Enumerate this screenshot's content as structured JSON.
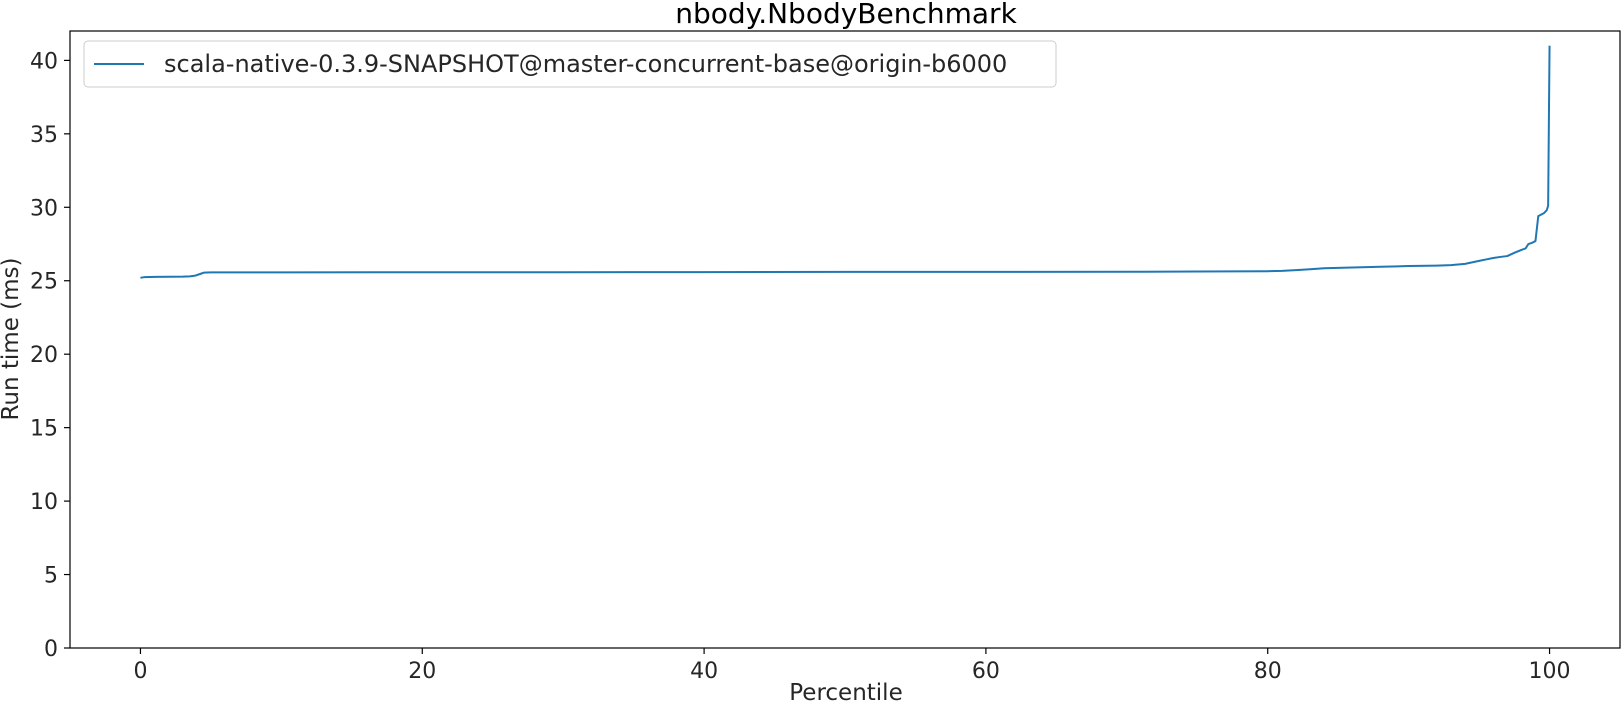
{
  "chart_data": {
    "type": "line",
    "title": "nbody.NbodyBenchmark",
    "xlabel": "Percentile",
    "ylabel": "Run time (ms)",
    "xlim": [
      -5,
      105
    ],
    "ylim": [
      0,
      42
    ],
    "xticks": [
      0,
      20,
      40,
      60,
      80,
      100
    ],
    "yticks": [
      0,
      5,
      10,
      15,
      20,
      25,
      30,
      35,
      40
    ],
    "grid": false,
    "legend_position": "top-left",
    "series": [
      {
        "name": "scala-native-0.3.9-SNAPSHOT@master-concurrent-base@origin-b6000",
        "color": "#1f77b4",
        "x": [
          0,
          0.3,
          1,
          2,
          3,
          3.5,
          3.9,
          4.2,
          4.5,
          5,
          10,
          20,
          30,
          40,
          50,
          60,
          70,
          75,
          80,
          81,
          82,
          83,
          84,
          86,
          88,
          90,
          92,
          93,
          94,
          94.5,
          95,
          95.5,
          96,
          96.5,
          97,
          97.5,
          98,
          98.3,
          98.5,
          98.8,
          99,
          99.2,
          99.4,
          99.6,
          99.8,
          99.9,
          100
        ],
        "y": [
          25.2,
          25.25,
          25.26,
          25.27,
          25.28,
          25.3,
          25.35,
          25.45,
          25.55,
          25.57,
          25.57,
          25.58,
          25.58,
          25.59,
          25.6,
          25.6,
          25.61,
          25.63,
          25.65,
          25.67,
          25.72,
          25.78,
          25.85,
          25.9,
          25.95,
          26.0,
          26.03,
          26.06,
          26.15,
          26.25,
          26.35,
          26.45,
          26.55,
          26.62,
          26.68,
          26.9,
          27.1,
          27.2,
          27.5,
          27.6,
          27.7,
          29.4,
          29.5,
          29.6,
          29.8,
          30.1,
          41.0
        ]
      }
    ]
  }
}
